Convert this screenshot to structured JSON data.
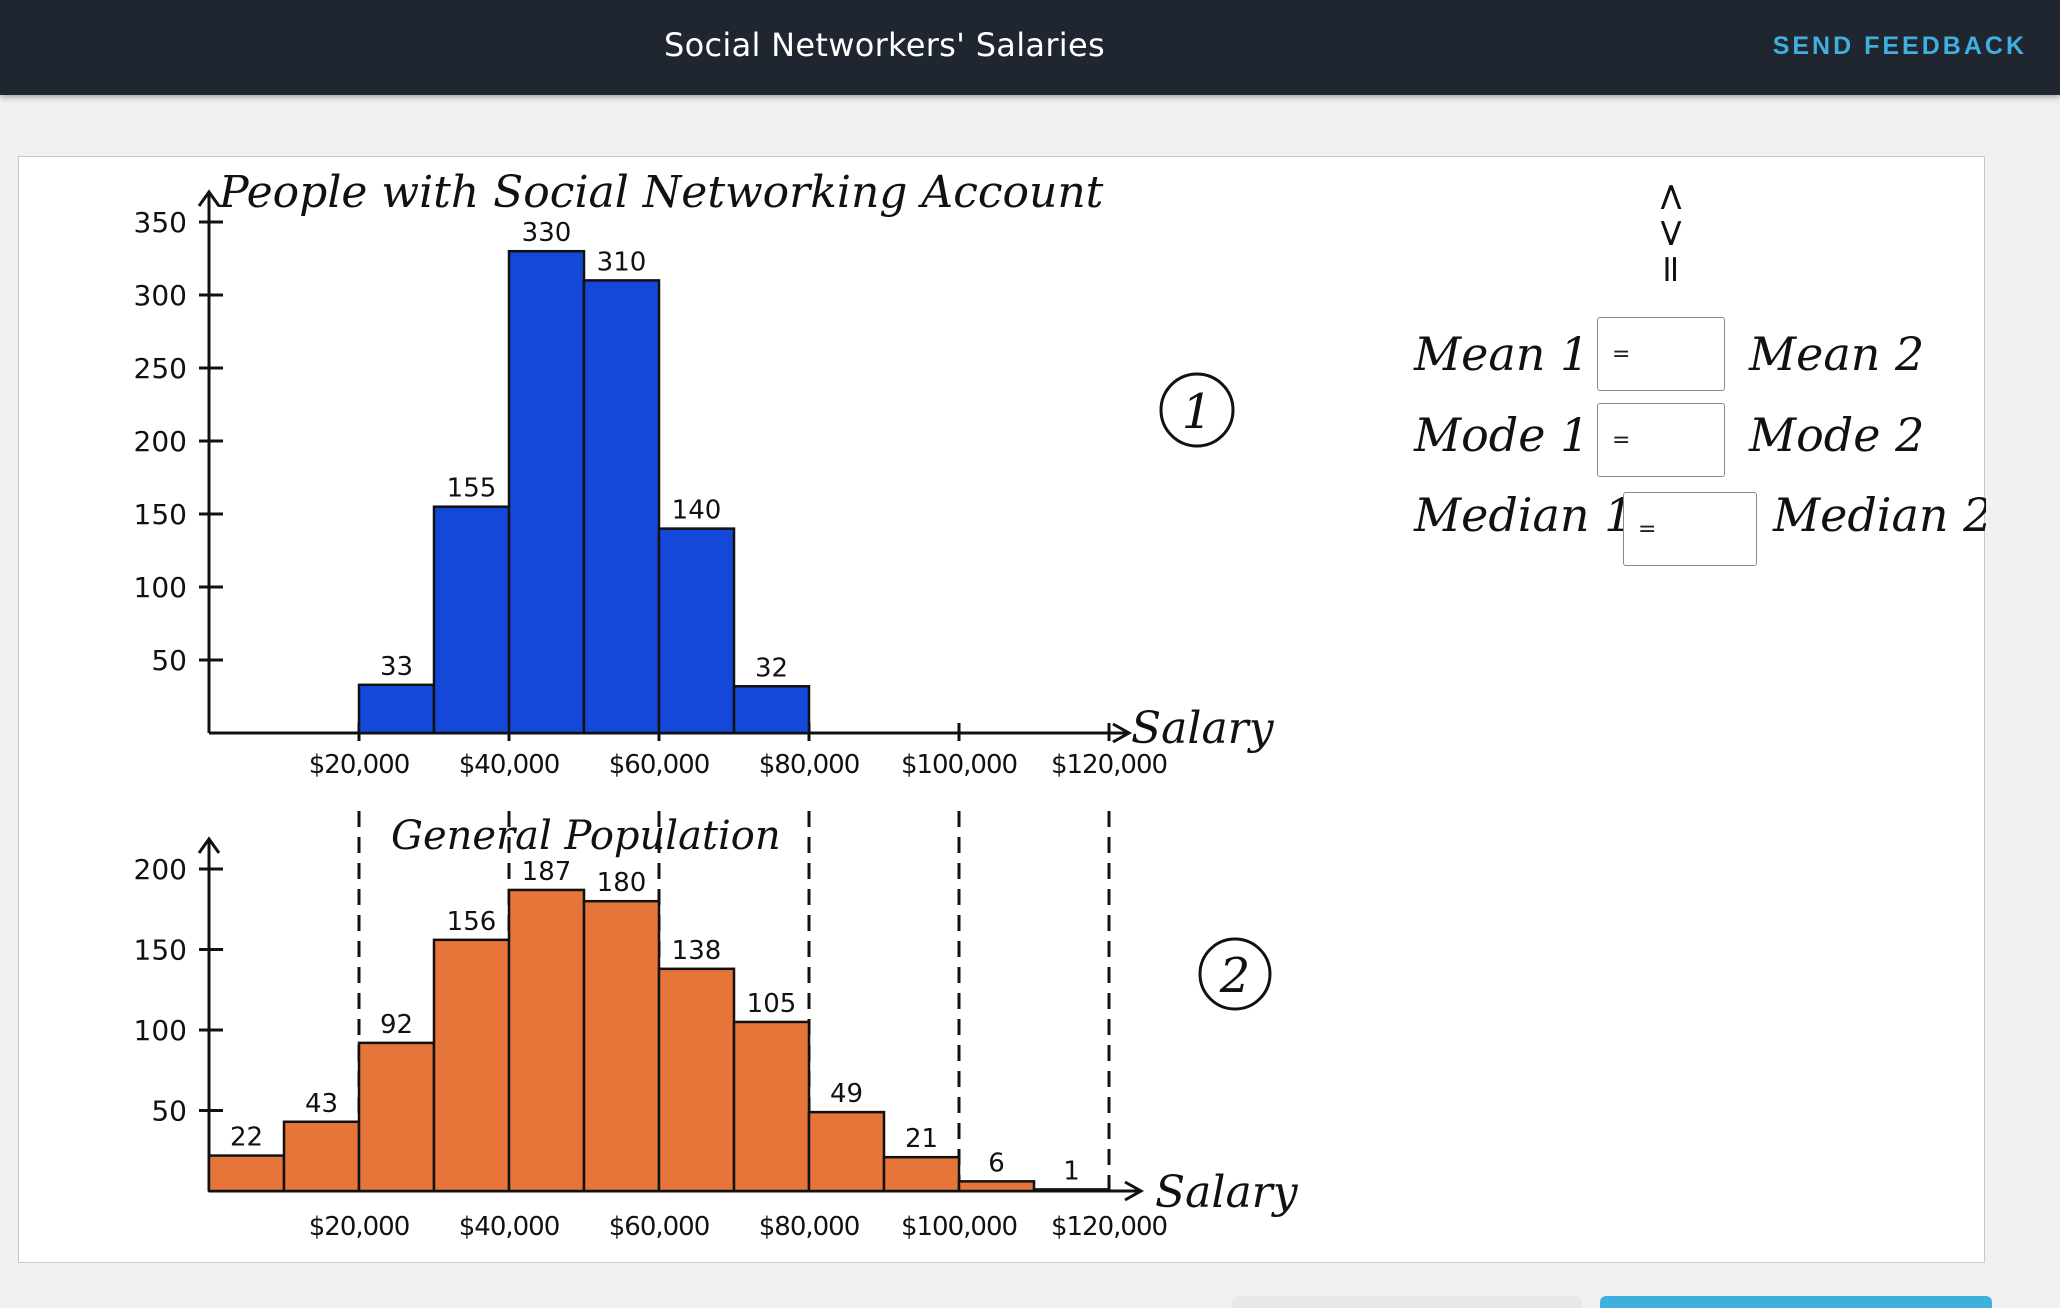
{
  "header": {
    "title": "Social Networkers' Salaries",
    "feedback_label": "SEND FEEDBACK"
  },
  "comparison": {
    "symbols": "< > =",
    "rows": [
      {
        "left": "Mean 1",
        "right": "Mean 2",
        "value": "="
      },
      {
        "left": "Mode 1",
        "right": "Mode 2",
        "value": "="
      },
      {
        "left": "Median 1",
        "right": "Median 2",
        "value": "="
      }
    ]
  },
  "colors": {
    "chart1_bar": "#1448d8",
    "chart2_bar": "#e57538",
    "header_bg": "#1f2630",
    "accent": "#3fb0de"
  },
  "chart_data": [
    {
      "type": "bar",
      "title": "People with Social Networking Account",
      "marker": "1",
      "xlabel": "Salary",
      "x_ticks": [
        "$20,000",
        "$40,000",
        "$60,000",
        "$80,000",
        "$100,000",
        "$120,000"
      ],
      "y_ticks": [
        "50",
        "100",
        "150",
        "200",
        "250",
        "300",
        "350"
      ],
      "ylim": [
        0,
        350
      ],
      "bins": [
        {
          "from": 20000,
          "to": 30000,
          "value": 33,
          "label": "33"
        },
        {
          "from": 30000,
          "to": 40000,
          "value": 155,
          "label": "155"
        },
        {
          "from": 40000,
          "to": 50000,
          "value": 330,
          "label": "330"
        },
        {
          "from": 50000,
          "to": 60000,
          "value": 310,
          "label": "310"
        },
        {
          "from": 60000,
          "to": 70000,
          "value": 140,
          "label": "140"
        },
        {
          "from": 70000,
          "to": 80000,
          "value": 32,
          "label": "32"
        }
      ]
    },
    {
      "type": "bar",
      "title": "General Population",
      "marker": "2",
      "xlabel": "Salary",
      "x_ticks": [
        "$20,000",
        "$40,000",
        "$60,000",
        "$80,000",
        "$100,000",
        "$120,000"
      ],
      "y_ticks": [
        "50",
        "100",
        "150",
        "200"
      ],
      "ylim": [
        0,
        200
      ],
      "bins": [
        {
          "from": 0,
          "to": 10000,
          "value": 22,
          "label": "22"
        },
        {
          "from": 10000,
          "to": 20000,
          "value": 43,
          "label": "43"
        },
        {
          "from": 20000,
          "to": 30000,
          "value": 92,
          "label": "92"
        },
        {
          "from": 30000,
          "to": 40000,
          "value": 156,
          "label": "156"
        },
        {
          "from": 40000,
          "to": 50000,
          "value": 187,
          "label": "187"
        },
        {
          "from": 50000,
          "to": 60000,
          "value": 180,
          "label": "180"
        },
        {
          "from": 60000,
          "to": 70000,
          "value": 138,
          "label": "138"
        },
        {
          "from": 70000,
          "to": 80000,
          "value": 105,
          "label": "105"
        },
        {
          "from": 80000,
          "to": 90000,
          "value": 49,
          "label": "49"
        },
        {
          "from": 90000,
          "to": 100000,
          "value": 21,
          "label": "21"
        },
        {
          "from": 100000,
          "to": 110000,
          "value": 6,
          "label": "6"
        },
        {
          "from": 110000,
          "to": 120000,
          "value": 1,
          "label": "1"
        }
      ]
    }
  ]
}
